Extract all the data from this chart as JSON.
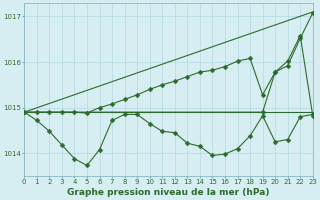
{
  "title": "Graphe pression niveau de la mer (hPa)",
  "xlim": [
    0,
    23
  ],
  "ylim": [
    1013.5,
    1017.3
  ],
  "yticks": [
    1014,
    1015,
    1016,
    1017
  ],
  "xticks": [
    0,
    1,
    2,
    3,
    4,
    5,
    6,
    7,
    8,
    9,
    10,
    11,
    12,
    13,
    14,
    15,
    16,
    17,
    18,
    19,
    20,
    21,
    22,
    23
  ],
  "background_color": "#d6eef2",
  "grid_color": "#aad4dc",
  "line_color": "#2d6a2d",
  "marker_size": 2.5,
  "font_color": "#2d6a2d",
  "tick_fontsize": 5.0,
  "title_fontsize": 6.5,
  "figure_bg": "#d6eef2",
  "series": [
    {
      "x": [
        0,
        23
      ],
      "y": [
        1014.9,
        1014.9
      ],
      "markers": false,
      "lw": 0.8
    },
    {
      "x": [
        0,
        23
      ],
      "y": [
        1014.9,
        1017.1
      ],
      "markers": false,
      "lw": 0.8
    },
    {
      "x": [
        0,
        1,
        2,
        3,
        4,
        5,
        6,
        7,
        8,
        9,
        10,
        11,
        12,
        13,
        14,
        15,
        16,
        17,
        18,
        19,
        20,
        21,
        22,
        23
      ],
      "y": [
        1014.9,
        1014.72,
        1014.48,
        1014.18,
        1013.88,
        1013.73,
        1014.08,
        1014.72,
        1014.85,
        1014.85,
        1014.65,
        1014.48,
        1014.45,
        1014.22,
        1014.15,
        1013.95,
        1013.98,
        1014.1,
        1014.38,
        1014.82,
        1014.25,
        1014.3,
        1014.8,
        1014.85
      ],
      "markers": true,
      "lw": 0.8
    },
    {
      "x": [
        0,
        1,
        2,
        3,
        4,
        5,
        6,
        7,
        8,
        9,
        10,
        11,
        12,
        13,
        14,
        15,
        16,
        17,
        18,
        19,
        20,
        21,
        22,
        23
      ],
      "y": [
        1014.9,
        1014.9,
        1014.9,
        1014.9,
        1014.9,
        1014.88,
        1015.0,
        1015.08,
        1015.18,
        1015.28,
        1015.4,
        1015.5,
        1015.58,
        1015.68,
        1015.78,
        1015.82,
        1015.9,
        1016.02,
        1016.08,
        1015.28,
        1015.78,
        1016.02,
        1016.58,
        1014.82
      ],
      "markers": true,
      "lw": 0.8
    },
    {
      "x": [
        0,
        19,
        20,
        21,
        22,
        23
      ],
      "y": [
        1014.9,
        1014.9,
        1015.78,
        1015.92,
        1016.52,
        1017.08
      ],
      "markers": true,
      "lw": 0.8
    }
  ]
}
